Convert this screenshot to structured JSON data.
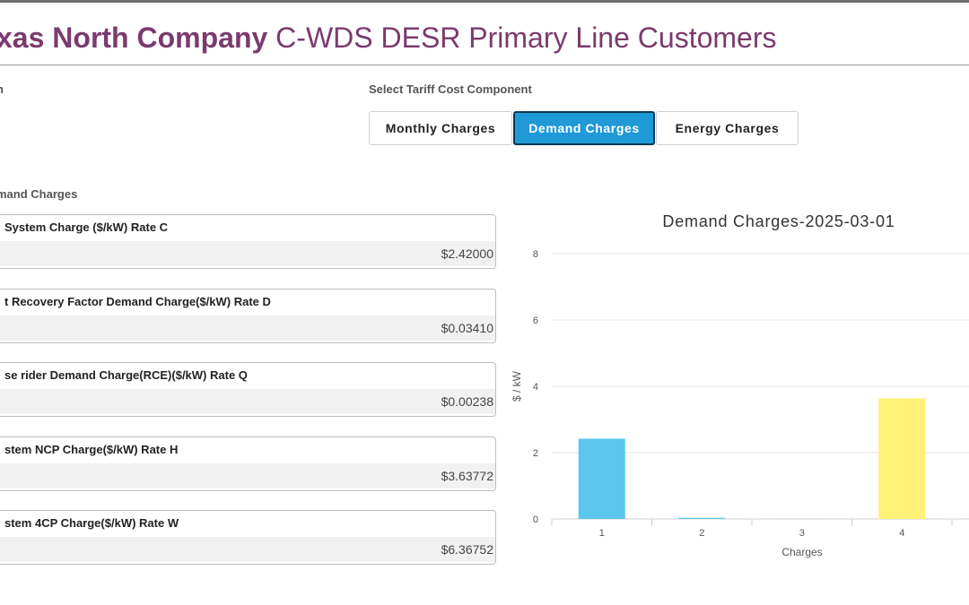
{
  "header": {
    "company": "xas North Company",
    "title": "C-WDS DESR Primary Line Customers"
  },
  "left_cut_label": "n",
  "tariff_selector": {
    "label": "Select Tariff Cost Component",
    "options": [
      {
        "label": "Monthly Charges",
        "active": false
      },
      {
        "label": "Demand Charges",
        "active": true
      },
      {
        "label": "Energy Charges",
        "active": false
      }
    ]
  },
  "section_title": "mand Charges",
  "charges": [
    {
      "title": "System Charge ($/kW) Rate C",
      "value": "$2.42000"
    },
    {
      "title": "t Recovery Factor Demand Charge($/kW) Rate D",
      "value": "$0.03410"
    },
    {
      "title": "se rider Demand Charge(RCE)($/kW) Rate Q",
      "value": "$0.00238"
    },
    {
      "title": "stem NCP Charge($/kW) Rate H",
      "value": "$3.63772"
    },
    {
      "title": "stem 4CP Charge($/kW) Rate W",
      "value": "$6.36752"
    }
  ],
  "chart_data": {
    "type": "bar",
    "title": "Demand Charges-2025-03-01",
    "xlabel": "Charges",
    "ylabel": "$ / kW",
    "categories": [
      "1",
      "2",
      "3",
      "4"
    ],
    "values": [
      2.42,
      0.0341,
      0.00238,
      3.63772
    ],
    "colors": [
      "#5bc6ee",
      "#5bc6ee",
      "#5bc6ee",
      "#fff176"
    ],
    "ylim": [
      0,
      8
    ],
    "yticks": [
      0,
      2,
      4,
      6,
      8
    ],
    "grid": true
  }
}
